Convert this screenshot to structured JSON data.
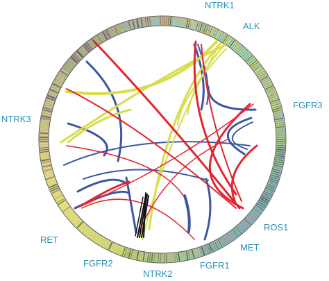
{
  "diagram": {
    "type": "circos",
    "gene_labels": [
      {
        "id": "ntrk1",
        "text": "NTRK1",
        "color": "#2a8fb8"
      },
      {
        "id": "alk",
        "text": "ALK",
        "color": "#2a8fb8"
      },
      {
        "id": "fgfr3",
        "text": "FGFR3",
        "color": "#2a8fb8"
      },
      {
        "id": "ros1",
        "text": "ROS1",
        "color": "#2a8fb8"
      },
      {
        "id": "met",
        "text": "MET",
        "color": "#2a8fb8"
      },
      {
        "id": "fgfr1",
        "text": "FGFR1",
        "color": "#2a8fb8"
      },
      {
        "id": "ntrk2",
        "text": "NTRK2",
        "color": "#2a8fb8"
      },
      {
        "id": "fgfr2",
        "text": "FGFR2",
        "color": "#2a8fb8"
      },
      {
        "id": "ret",
        "text": "RET",
        "color": "#2a8fb8"
      },
      {
        "id": "ntrk3",
        "text": "NTRK3",
        "color": "#2a8fb8"
      }
    ],
    "link_colors": {
      "red": "#e0262f",
      "blue": "#3d55a6",
      "yellow": "#d7dc4a",
      "black": "#111111"
    },
    "ring_gradient": [
      "#6f6aa6",
      "#9f8bb8",
      "#c9b48d",
      "#dcd47a",
      "#e5e27e",
      "#c9dc7a",
      "#a7c96f",
      "#8ec8c0",
      "#4fb0d8",
      "#8aa0cc"
    ]
  }
}
